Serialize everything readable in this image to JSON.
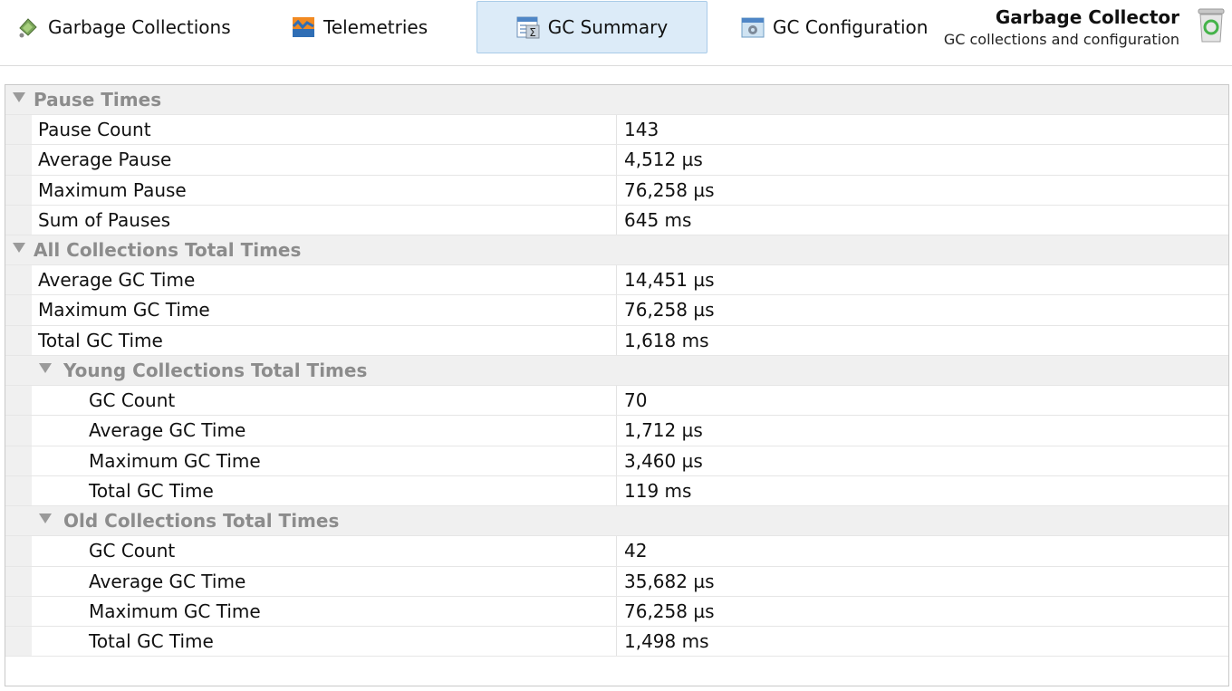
{
  "tabs": [
    {
      "label": "Garbage Collections",
      "icon": "garbage-collections-icon"
    },
    {
      "label": "Telemetries",
      "icon": "telemetries-icon"
    },
    {
      "label": "GC Summary",
      "icon": "gc-summary-icon",
      "selected": true
    },
    {
      "label": "GC Configuration",
      "icon": "gc-configuration-icon"
    }
  ],
  "header": {
    "title": "Garbage Collector",
    "subtitle": "GC collections and configuration",
    "icon": "recycle-bin-icon"
  },
  "table": {
    "pause_times": {
      "label": "Pause Times",
      "rows": [
        {
          "key": "Pause Count",
          "value": "143"
        },
        {
          "key": "Average Pause",
          "value": "4,512 µs"
        },
        {
          "key": "Maximum Pause",
          "value": "76,258 µs"
        },
        {
          "key": "Sum of Pauses",
          "value": "645 ms"
        }
      ]
    },
    "all_collections": {
      "label": "All Collections Total Times",
      "rows": [
        {
          "key": "Average GC Time",
          "value": "14,451 µs"
        },
        {
          "key": "Maximum GC Time",
          "value": "76,258 µs"
        },
        {
          "key": "Total GC Time",
          "value": "1,618 ms"
        }
      ],
      "young": {
        "label": "Young Collections Total Times",
        "rows": [
          {
            "key": "GC Count",
            "value": "70"
          },
          {
            "key": "Average GC Time",
            "value": "1,712 µs"
          },
          {
            "key": "Maximum GC Time",
            "value": "3,460 µs"
          },
          {
            "key": "Total GC Time",
            "value": "119 ms"
          }
        ]
      },
      "old": {
        "label": "Old Collections Total Times",
        "rows": [
          {
            "key": "GC Count",
            "value": "42"
          },
          {
            "key": "Average GC Time",
            "value": "35,682 µs"
          },
          {
            "key": "Maximum GC Time",
            "value": "76,258 µs"
          },
          {
            "key": "Total GC Time",
            "value": "1,498 ms"
          }
        ]
      }
    }
  },
  "colors": {
    "selected_tab_bg": "#dcebf8",
    "group_text": "#8c8c8c",
    "group_bg": "#f0f0f0"
  }
}
